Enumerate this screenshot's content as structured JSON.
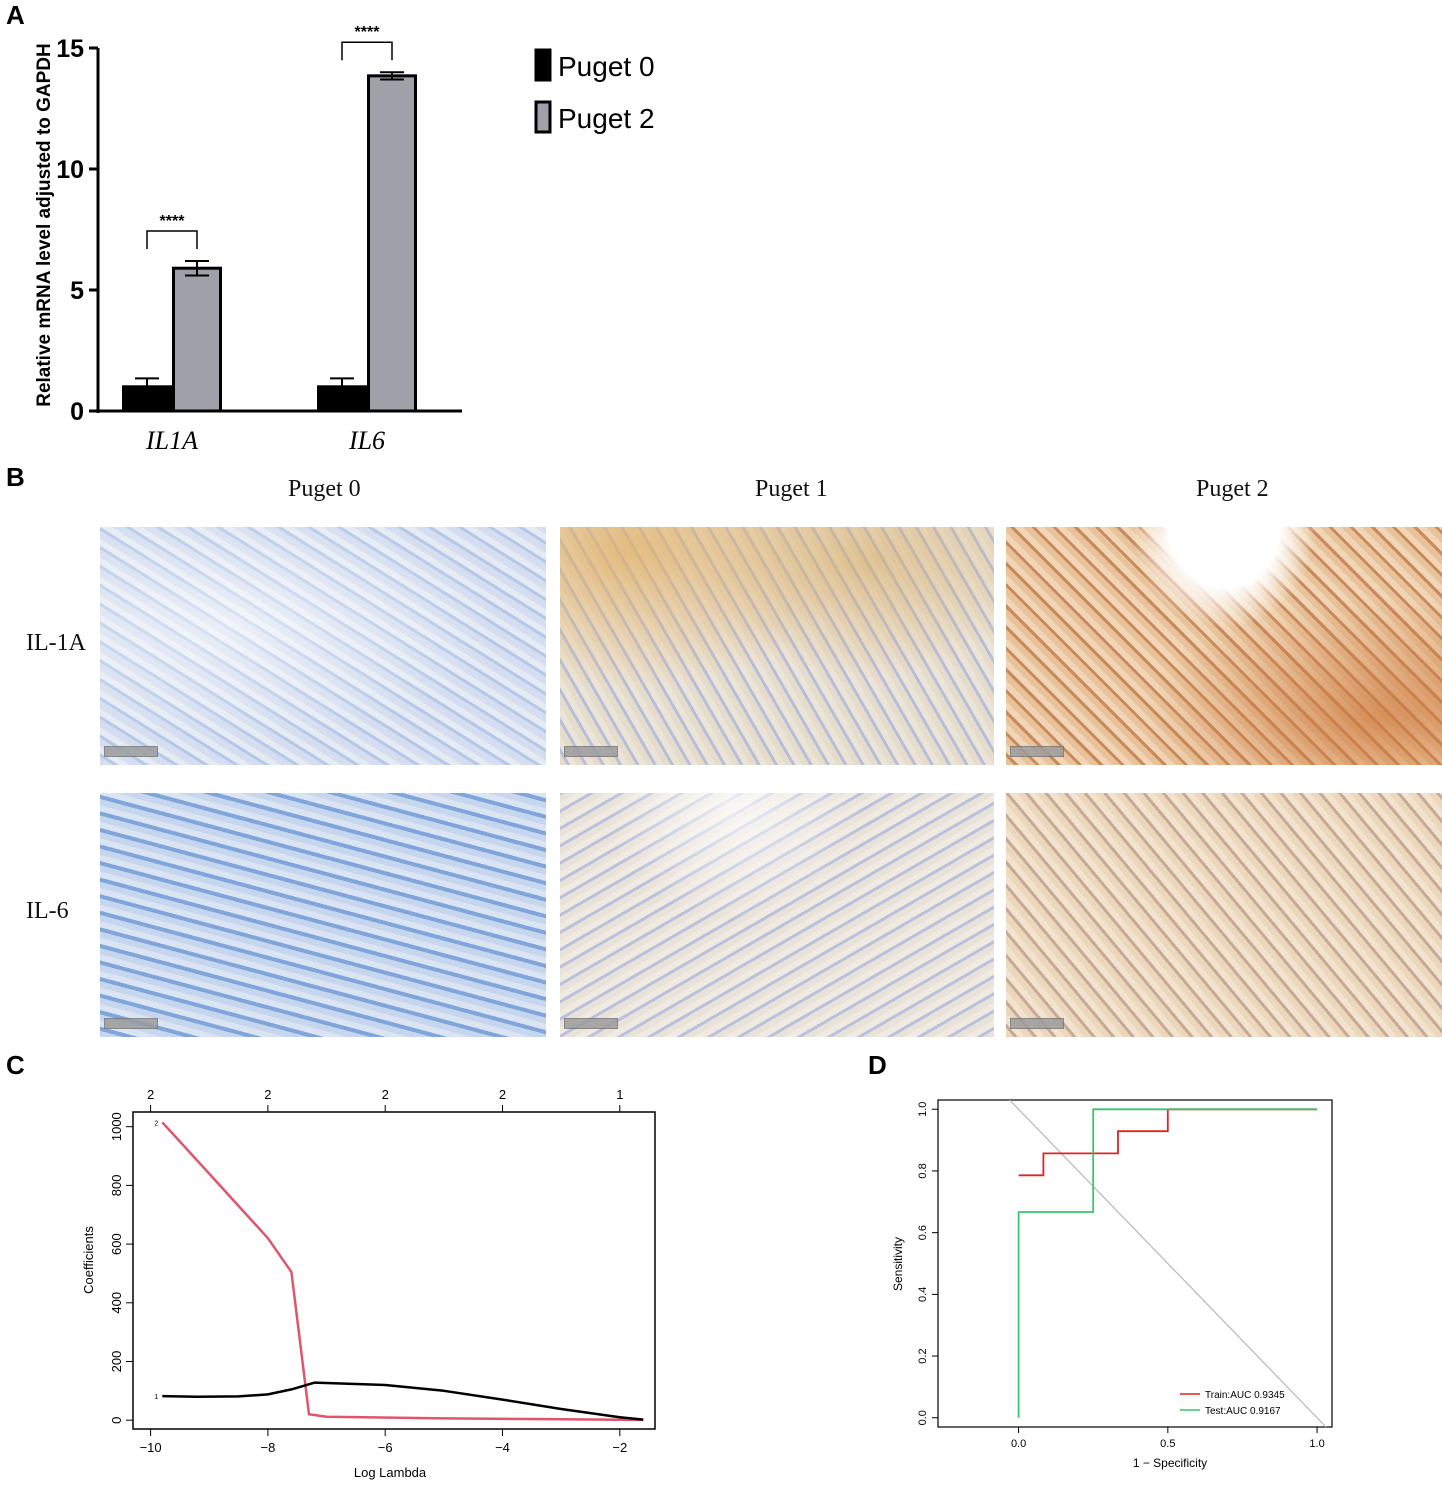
{
  "panels": {
    "a": "A",
    "b": "B",
    "c": "C",
    "d": "D"
  },
  "panel_b": {
    "columns": [
      "Puget 0",
      "Puget 1",
      "Puget 2"
    ],
    "rows": [
      "IL-1A",
      "IL-6"
    ]
  },
  "chart_data": [
    {
      "id": "A",
      "type": "bar",
      "ylabel": "Relative mRNA level adjusted to GAPDH",
      "ylim": [
        0,
        15
      ],
      "yticks": [
        "0",
        "5",
        "10",
        "15"
      ],
      "categories": [
        "IL1A",
        "IL6"
      ],
      "series": [
        {
          "name": "Puget 0",
          "values": [
            1.0,
            1.0
          ],
          "errors": [
            0.35,
            0.35
          ],
          "color": "#000000"
        },
        {
          "name": "Puget 2",
          "values": [
            5.9,
            13.85
          ],
          "errors": [
            0.3,
            0.15
          ],
          "color": "#a0a0a8"
        }
      ],
      "significance": [
        "****",
        "****"
      ],
      "legend_position": "right"
    },
    {
      "id": "C",
      "type": "line",
      "xlabel": "Log Lambda",
      "ylabel": "Coefficients",
      "xlim": [
        -10.3,
        -1.4
      ],
      "ylim": [
        -30,
        1050
      ],
      "xticks": [
        "-10",
        "-8",
        "-6",
        "-4",
        "-2"
      ],
      "yticks": [
        "0",
        "200",
        "400",
        "600",
        "800",
        "1000"
      ],
      "top_axis_ticks": [
        "2",
        "2",
        "2",
        "2",
        "1"
      ],
      "line_labels": [
        "2",
        "1"
      ],
      "series": [
        {
          "values": [
            [
              -9.8,
              1015
            ],
            [
              -9,
              840
            ],
            [
              -8,
              620
            ],
            [
              -7.6,
              505
            ],
            [
              -7.3,
              20
            ],
            [
              -7,
              12
            ],
            [
              -5,
              6
            ],
            [
              -3,
              3
            ],
            [
              -1.6,
              1
            ]
          ],
          "color": "#e0556b"
        },
        {
          "values": [
            [
              -9.8,
              82
            ],
            [
              -9.2,
              80
            ],
            [
              -8.5,
              81
            ],
            [
              -8,
              88
            ],
            [
              -7.6,
              105
            ],
            [
              -7.2,
              128
            ],
            [
              -6,
              120
            ],
            [
              -5,
              100
            ],
            [
              -4,
              70
            ],
            [
              -3,
              38
            ],
            [
              -2,
              10
            ],
            [
              -1.6,
              2
            ]
          ],
          "color": "#000000"
        }
      ]
    },
    {
      "id": "D",
      "type": "line",
      "xlabel": "1 − Specificity",
      "ylabel": "Sensitivity",
      "xlim": [
        -0.27,
        1.05
      ],
      "ylim": [
        -0.03,
        1.03
      ],
      "xticks": [
        "0.0",
        "0.5",
        "1.0"
      ],
      "yticks": [
        "0.0",
        "0.2",
        "0.4",
        "0.6",
        "0.8",
        "1.0"
      ],
      "legend_position": "bottom-right",
      "series": [
        {
          "name": "Train:AUC 0.9345",
          "color": "#e02424",
          "values": [
            [
              0,
              0.786
            ],
            [
              0.083,
              0.786
            ],
            [
              0.083,
              0.857
            ],
            [
              0.333,
              0.857
            ],
            [
              0.333,
              0.929
            ],
            [
              0.5,
              0.929
            ],
            [
              0.5,
              1.0
            ],
            [
              1.0,
              1.0
            ]
          ]
        },
        {
          "name": "Test:AUC 0.9167",
          "color": "#3cc46c",
          "values": [
            [
              0,
              0
            ],
            [
              0,
              0.667
            ],
            [
              0.25,
              0.667
            ],
            [
              0.25,
              1.0
            ],
            [
              1.0,
              1.0
            ]
          ]
        }
      ]
    }
  ]
}
